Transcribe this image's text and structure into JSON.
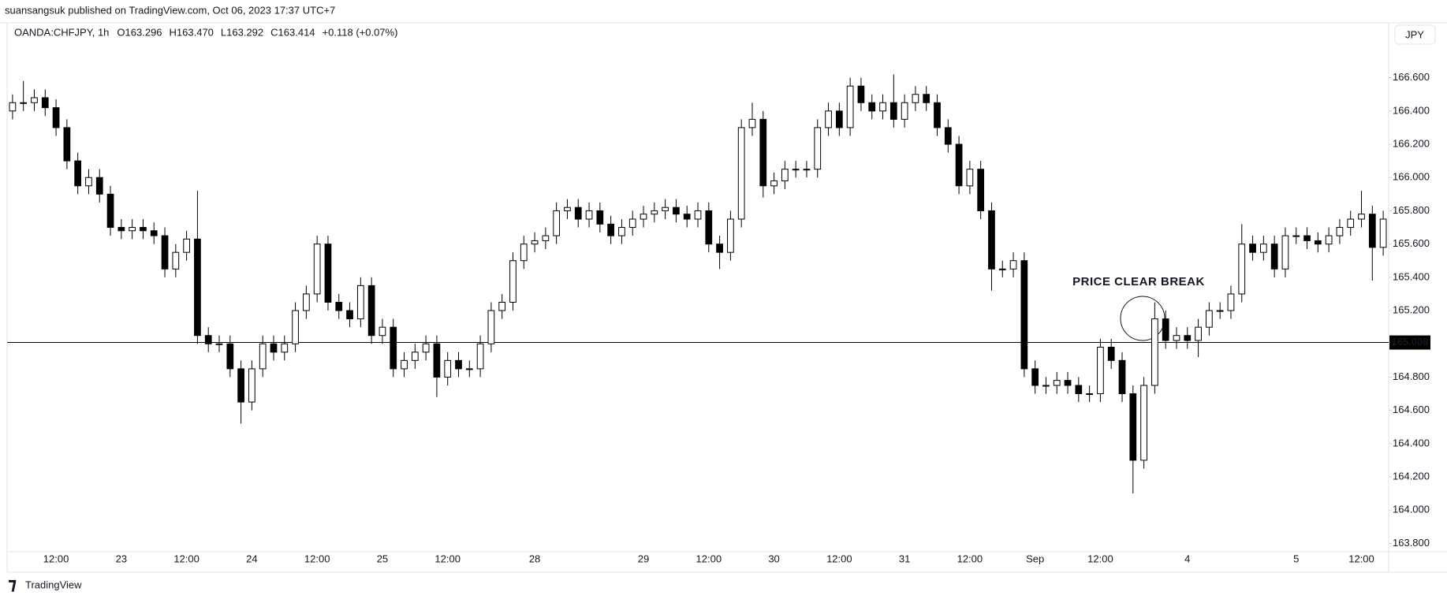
{
  "header": "suansangsuk published on TradingView.com, Oct 06, 2023 17:37 UTC+7",
  "footer": "TradingView",
  "chart_data": {
    "type": "candlestick",
    "symbol": "OANDA:CHFJPY, 1h",
    "ohlc_labels": [
      "O163.296",
      "H163.470",
      "L163.292",
      "C163.414",
      "+0.118 (+0.07%)"
    ],
    "currency": "JPY",
    "annotation": "PRICE CLEAR BREAK",
    "hline": {
      "value": 165.008,
      "color": "#000000"
    },
    "up_color": "#ffffff",
    "down_color": "#000000",
    "ylim": [
      163.75,
      166.93
    ],
    "yticks": [
      {
        "value": 163.8,
        "label": "163.800"
      },
      {
        "value": 164.0,
        "label": "164.000"
      },
      {
        "value": 164.2,
        "label": "164.200"
      },
      {
        "value": 164.4,
        "label": "164.400"
      },
      {
        "value": 164.6,
        "label": "164.600"
      },
      {
        "value": 164.8,
        "label": "164.800"
      },
      {
        "value": 165.0,
        "label": "165.000"
      },
      {
        "value": 165.2,
        "label": "165.200"
      },
      {
        "value": 165.4,
        "label": "165.400"
      },
      {
        "value": 165.6,
        "label": "165.600"
      },
      {
        "value": 165.8,
        "label": "165.800"
      },
      {
        "value": 166.0,
        "label": "166.000"
      },
      {
        "value": 166.2,
        "label": "166.200"
      },
      {
        "value": 166.4,
        "label": "166.400"
      },
      {
        "value": 166.6,
        "label": "166.600"
      }
    ],
    "categories": [
      null,
      null,
      null,
      null,
      "12:00",
      null,
      null,
      null,
      null,
      null,
      "23",
      null,
      null,
      null,
      null,
      null,
      "12:00",
      null,
      null,
      null,
      null,
      null,
      "24",
      null,
      null,
      null,
      null,
      null,
      "12:00",
      null,
      null,
      null,
      null,
      null,
      "25",
      null,
      null,
      null,
      null,
      null,
      "12:00",
      null,
      null,
      null,
      null,
      null,
      null,
      null,
      "28",
      null,
      null,
      null,
      null,
      null,
      null,
      null,
      null,
      null,
      "29",
      null,
      null,
      null,
      null,
      null,
      "12:00",
      null,
      null,
      null,
      null,
      null,
      "30",
      null,
      null,
      null,
      null,
      null,
      "12:00",
      null,
      null,
      null,
      null,
      null,
      "31",
      null,
      null,
      null,
      null,
      null,
      "12:00",
      null,
      null,
      null,
      null,
      null,
      "Sep",
      null,
      null,
      null,
      null,
      null,
      "12:00",
      null,
      null,
      null,
      null,
      null,
      null,
      null,
      "4",
      null,
      null,
      null,
      null,
      null,
      null,
      null,
      null,
      null,
      "5",
      null,
      null,
      null,
      null,
      null,
      "12:00",
      null,
      null
    ],
    "open": [
      166.4,
      166.45,
      166.45,
      166.48,
      166.42,
      166.3,
      166.1,
      165.95,
      166.0,
      165.9,
      165.7,
      165.68,
      165.7,
      165.68,
      165.65,
      165.45,
      165.55,
      165.63,
      165.05,
      165.0,
      165.0,
      164.85,
      164.65,
      164.85,
      165.0,
      164.95,
      165.0,
      165.2,
      165.3,
      165.6,
      165.25,
      165.2,
      165.15,
      165.35,
      165.05,
      165.1,
      164.85,
      164.9,
      164.95,
      165.0,
      164.8,
      164.9,
      164.85,
      164.85,
      165.0,
      165.2,
      165.25,
      165.5,
      165.6,
      165.62,
      165.65,
      165.8,
      165.82,
      165.75,
      165.8,
      165.72,
      165.65,
      165.7,
      165.75,
      165.78,
      165.8,
      165.82,
      165.78,
      165.75,
      165.8,
      165.6,
      165.55,
      165.75,
      166.3,
      166.35,
      165.95,
      165.98,
      166.05,
      166.05,
      166.05,
      166.3,
      166.4,
      166.3,
      166.55,
      166.45,
      166.4,
      166.45,
      166.35,
      166.45,
      166.5,
      166.45,
      166.3,
      166.2,
      165.95,
      166.05,
      165.8,
      165.45,
      165.45,
      165.5,
      164.85,
      164.75,
      164.75,
      164.78,
      164.75,
      164.7,
      164.7,
      164.98,
      164.9,
      164.7,
      164.3,
      164.75,
      165.15,
      165.02,
      165.05,
      165.02,
      165.1,
      165.2,
      165.2,
      165.3,
      165.6,
      165.55,
      165.6,
      165.45,
      165.65,
      165.65,
      165.62,
      165.6,
      165.65,
      165.7,
      165.75,
      165.78,
      165.58
    ],
    "high": [
      166.5,
      166.58,
      166.53,
      166.53,
      166.47,
      166.35,
      166.15,
      166.05,
      166.05,
      165.95,
      165.75,
      165.75,
      165.75,
      165.73,
      165.7,
      165.6,
      165.68,
      165.92,
      165.1,
      165.05,
      165.05,
      164.9,
      164.9,
      165.05,
      165.05,
      165.05,
      165.25,
      165.35,
      165.65,
      165.65,
      165.3,
      165.25,
      165.4,
      165.4,
      165.15,
      165.15,
      164.95,
      165.0,
      165.05,
      165.05,
      164.95,
      164.95,
      164.9,
      165.05,
      165.25,
      165.3,
      165.55,
      165.65,
      165.67,
      165.7,
      165.85,
      165.87,
      165.87,
      165.85,
      165.85,
      165.77,
      165.75,
      165.8,
      165.83,
      165.85,
      165.87,
      165.87,
      165.83,
      165.85,
      165.85,
      165.65,
      165.8,
      166.35,
      166.45,
      166.4,
      166.03,
      166.1,
      166.1,
      166.1,
      166.35,
      166.45,
      166.45,
      166.6,
      166.6,
      166.5,
      166.5,
      166.62,
      166.5,
      166.55,
      166.55,
      166.5,
      166.35,
      166.25,
      166.1,
      166.1,
      165.85,
      165.5,
      165.55,
      165.55,
      164.9,
      164.8,
      164.83,
      164.83,
      164.8,
      164.75,
      165.03,
      165.03,
      164.95,
      164.75,
      164.8,
      165.25,
      165.2,
      165.1,
      165.1,
      165.15,
      165.25,
      165.25,
      165.35,
      165.72,
      165.65,
      165.65,
      165.65,
      165.7,
      165.7,
      165.7,
      165.67,
      165.7,
      165.75,
      165.8,
      165.92,
      165.83,
      165.8
    ],
    "low": [
      166.35,
      166.4,
      166.4,
      166.37,
      166.25,
      166.05,
      165.9,
      165.9,
      165.85,
      165.65,
      165.63,
      165.63,
      165.63,
      165.6,
      165.4,
      165.4,
      165.5,
      165.0,
      164.95,
      164.95,
      164.8,
      164.52,
      164.6,
      164.8,
      164.9,
      164.9,
      164.95,
      165.15,
      165.25,
      165.2,
      165.15,
      165.1,
      165.1,
      165.0,
      165.0,
      164.8,
      164.8,
      164.85,
      164.9,
      164.68,
      164.75,
      164.8,
      164.8,
      164.8,
      164.95,
      165.15,
      165.2,
      165.45,
      165.55,
      165.57,
      165.6,
      165.75,
      165.7,
      165.7,
      165.67,
      165.6,
      165.6,
      165.65,
      165.7,
      165.73,
      165.75,
      165.73,
      165.7,
      165.7,
      165.55,
      165.45,
      165.5,
      165.7,
      166.25,
      165.88,
      165.9,
      165.93,
      166.0,
      166.0,
      166.0,
      166.25,
      166.25,
      166.25,
      166.4,
      166.35,
      166.35,
      166.3,
      166.3,
      166.4,
      166.4,
      166.25,
      166.15,
      165.9,
      165.9,
      165.75,
      165.32,
      165.4,
      165.4,
      164.8,
      164.7,
      164.7,
      164.7,
      164.7,
      164.65,
      164.65,
      164.65,
      164.85,
      164.65,
      164.1,
      164.25,
      164.7,
      164.97,
      164.97,
      164.97,
      164.92,
      165.05,
      165.15,
      165.15,
      165.25,
      165.5,
      165.5,
      165.4,
      165.4,
      165.6,
      165.57,
      165.55,
      165.55,
      165.6,
      165.65,
      165.7,
      165.38,
      165.53
    ],
    "close": [
      166.45,
      166.45,
      166.48,
      166.42,
      166.3,
      166.1,
      165.95,
      166.0,
      165.9,
      165.7,
      165.68,
      165.7,
      165.68,
      165.65,
      165.45,
      165.55,
      165.63,
      165.05,
      165.0,
      165.0,
      164.85,
      164.65,
      164.85,
      165.0,
      164.95,
      165.0,
      165.2,
      165.3,
      165.6,
      165.25,
      165.2,
      165.15,
      165.35,
      165.05,
      165.1,
      164.85,
      164.9,
      164.95,
      165.0,
      164.8,
      164.9,
      164.85,
      164.85,
      165.0,
      165.2,
      165.25,
      165.5,
      165.6,
      165.62,
      165.65,
      165.8,
      165.82,
      165.75,
      165.8,
      165.72,
      165.65,
      165.7,
      165.75,
      165.78,
      165.8,
      165.82,
      165.78,
      165.75,
      165.8,
      165.6,
      165.55,
      165.75,
      166.3,
      166.35,
      165.95,
      165.98,
      166.05,
      166.05,
      166.05,
      166.3,
      166.4,
      166.3,
      166.55,
      166.45,
      166.4,
      166.45,
      166.35,
      166.45,
      166.5,
      166.45,
      166.3,
      166.2,
      165.95,
      166.05,
      165.8,
      165.45,
      165.45,
      165.5,
      164.85,
      164.75,
      164.75,
      164.78,
      164.75,
      164.7,
      164.7,
      164.98,
      164.9,
      164.7,
      164.3,
      164.75,
      165.15,
      165.02,
      165.05,
      165.02,
      165.1,
      165.2,
      165.2,
      165.3,
      165.6,
      165.55,
      165.6,
      165.45,
      165.65,
      165.65,
      165.62,
      165.6,
      165.65,
      165.7,
      165.75,
      165.78,
      165.58,
      165.75
    ]
  }
}
